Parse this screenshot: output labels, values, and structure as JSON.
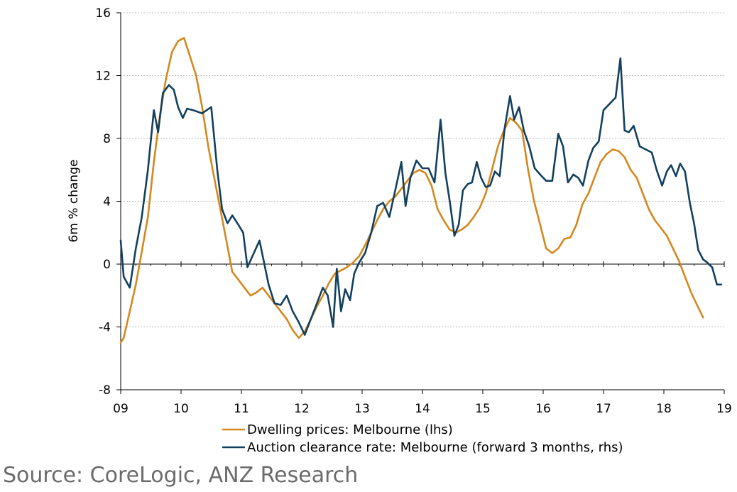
{
  "chart_data": {
    "type": "line",
    "ylabel": "6m % change",
    "ylim": [
      -8,
      16
    ],
    "y_ticks": [
      16,
      12,
      8,
      4,
      0,
      -4,
      -8
    ],
    "y_tick_labels": [
      "16",
      "12",
      "8",
      "4",
      "0",
      "-4",
      "-8"
    ],
    "xlim": [
      2009,
      2019
    ],
    "x_ticks": [
      2009,
      2010,
      2011,
      2012,
      2013,
      2014,
      2015,
      2016,
      2017,
      2018,
      2019
    ],
    "x_tick_labels": [
      "09",
      "10",
      "11",
      "12",
      "13",
      "14",
      "15",
      "16",
      "17",
      "18",
      "19"
    ],
    "grid": true,
    "legend_position": "bottom",
    "series": [
      {
        "name": "Dwelling prices: Melbourne (lhs)",
        "color": "#d4881f",
        "x": [
          2009.0,
          2009.05,
          2009.15,
          2009.25,
          2009.35,
          2009.45,
          2009.55,
          2009.65,
          2009.75,
          2009.85,
          2009.95,
          2010.05,
          2010.15,
          2010.25,
          2010.35,
          2010.45,
          2010.55,
          2010.65,
          2010.75,
          2010.85,
          2010.95,
          2011.05,
          2011.15,
          2011.25,
          2011.35,
          2011.45,
          2011.55,
          2011.65,
          2011.75,
          2011.85,
          2011.95,
          2012.05,
          2012.15,
          2012.25,
          2012.35,
          2012.45,
          2012.55,
          2012.65,
          2012.75,
          2012.85,
          2012.95,
          2013.05,
          2013.15,
          2013.25,
          2013.35,
          2013.45,
          2013.55,
          2013.65,
          2013.75,
          2013.85,
          2013.95,
          2014.05,
          2014.15,
          2014.25,
          2014.35,
          2014.45,
          2014.55,
          2014.65,
          2014.75,
          2014.85,
          2014.95,
          2015.05,
          2015.15,
          2015.25,
          2015.35,
          2015.45,
          2015.55,
          2015.65,
          2015.75,
          2015.85,
          2015.95,
          2016.05,
          2016.15,
          2016.25,
          2016.35,
          2016.45,
          2016.55,
          2016.65,
          2016.75,
          2016.85,
          2016.95,
          2017.05,
          2017.15,
          2017.25,
          2017.35,
          2017.45,
          2017.55,
          2017.65,
          2017.75,
          2017.85,
          2017.95,
          2018.05,
          2018.15,
          2018.25,
          2018.35,
          2018.45,
          2018.55,
          2018.65
        ],
        "values": [
          -5.0,
          -4.7,
          -3.0,
          -1.3,
          0.8,
          3.0,
          6.5,
          9.5,
          11.8,
          13.5,
          14.2,
          14.4,
          13.2,
          12.0,
          10.0,
          7.5,
          5.5,
          3.5,
          1.5,
          -0.5,
          -1.0,
          -1.5,
          -2.0,
          -1.8,
          -1.5,
          -2.0,
          -2.5,
          -3.0,
          -3.5,
          -4.2,
          -4.7,
          -4.3,
          -3.5,
          -2.7,
          -2.0,
          -1.2,
          -0.6,
          -0.4,
          -0.2,
          0.1,
          0.5,
          1.2,
          2.0,
          2.8,
          3.5,
          4.0,
          4.3,
          4.8,
          5.3,
          5.8,
          6.0,
          5.8,
          5.0,
          3.5,
          2.8,
          2.2,
          2.0,
          2.2,
          2.5,
          3.0,
          3.6,
          4.5,
          6.0,
          7.5,
          8.5,
          9.3,
          9.0,
          8.5,
          6.0,
          4.0,
          2.5,
          1.0,
          0.7,
          1.0,
          1.6,
          1.7,
          2.5,
          3.8,
          4.5,
          5.5,
          6.5,
          7.0,
          7.3,
          7.2,
          6.8,
          6.0,
          5.5,
          4.5,
          3.5,
          2.8,
          2.3,
          1.8,
          1.0,
          0.2,
          -0.8,
          -1.8,
          -2.6,
          -3.4
        ]
      },
      {
        "name": "Auction clearance rate: Melbourne (forward 3 months, rhs)",
        "color": "#12405e",
        "x": [
          2009.0,
          2009.05,
          2009.15,
          2009.25,
          2009.35,
          2009.45,
          2009.55,
          2009.62,
          2009.7,
          2009.8,
          2009.88,
          2009.95,
          2010.03,
          2010.1,
          2010.2,
          2010.35,
          2010.5,
          2010.6,
          2010.68,
          2010.77,
          2010.85,
          2010.95,
          2011.03,
          2011.1,
          2011.3,
          2011.45,
          2011.55,
          2011.65,
          2011.75,
          2011.85,
          2011.95,
          2012.05,
          2012.15,
          2012.25,
          2012.35,
          2012.43,
          2012.52,
          2012.58,
          2012.65,
          2012.72,
          2012.8,
          2012.87,
          2012.95,
          2013.05,
          2013.15,
          2013.25,
          2013.35,
          2013.45,
          2013.55,
          2013.65,
          2013.72,
          2013.8,
          2013.9,
          2014.0,
          2014.1,
          2014.2,
          2014.3,
          2014.38,
          2014.46,
          2014.53,
          2014.6,
          2014.67,
          2014.75,
          2014.82,
          2014.9,
          2014.97,
          2015.05,
          2015.12,
          2015.2,
          2015.28,
          2015.36,
          2015.45,
          2015.52,
          2015.6,
          2015.68,
          2015.77,
          2015.86,
          2015.95,
          2016.05,
          2016.15,
          2016.25,
          2016.33,
          2016.41,
          2016.5,
          2016.58,
          2016.66,
          2016.75,
          2016.83,
          2016.92,
          2017.0,
          2017.1,
          2017.2,
          2017.28,
          2017.35,
          2017.42,
          2017.5,
          2017.6,
          2017.7,
          2017.8,
          2017.88,
          2017.97,
          2018.05,
          2018.12,
          2018.2,
          2018.27,
          2018.35,
          2018.43,
          2018.5,
          2018.57,
          2018.65,
          2018.72,
          2018.8,
          2018.88,
          2018.95
        ],
        "values": [
          1.5,
          -0.8,
          -1.5,
          1.0,
          3.0,
          6.0,
          9.8,
          8.4,
          10.9,
          11.4,
          11.1,
          10.0,
          9.3,
          9.9,
          9.8,
          9.6,
          10.0,
          6.0,
          3.5,
          2.6,
          3.1,
          2.5,
          2.0,
          -0.2,
          1.5,
          -1.3,
          -2.5,
          -2.6,
          -2.0,
          -3.0,
          -3.7,
          -4.5,
          -3.5,
          -2.5,
          -1.5,
          -2.0,
          -4.0,
          -0.3,
          -3.0,
          -1.6,
          -2.3,
          -0.6,
          0.1,
          0.7,
          2.0,
          3.7,
          3.9,
          3.0,
          4.7,
          6.5,
          3.7,
          5.5,
          6.6,
          6.1,
          6.1,
          5.2,
          9.2,
          5.8,
          3.8,
          1.8,
          2.5,
          4.7,
          5.1,
          5.2,
          6.5,
          5.5,
          4.9,
          5.0,
          5.9,
          5.6,
          8.6,
          10.7,
          9.2,
          10.0,
          8.5,
          7.5,
          6.1,
          5.7,
          5.3,
          5.3,
          8.3,
          7.5,
          5.2,
          5.7,
          5.5,
          5.0,
          6.6,
          7.4,
          7.8,
          9.8,
          10.2,
          10.6,
          13.1,
          8.5,
          8.4,
          8.8,
          7.5,
          7.3,
          7.1,
          6.0,
          5.0,
          5.9,
          6.3,
          5.6,
          6.4,
          5.9,
          3.9,
          2.6,
          0.9,
          0.3,
          0.1,
          -0.2,
          -1.3,
          -1.3
        ]
      }
    ]
  },
  "source": "Source: CoreLogic, ANZ Research"
}
